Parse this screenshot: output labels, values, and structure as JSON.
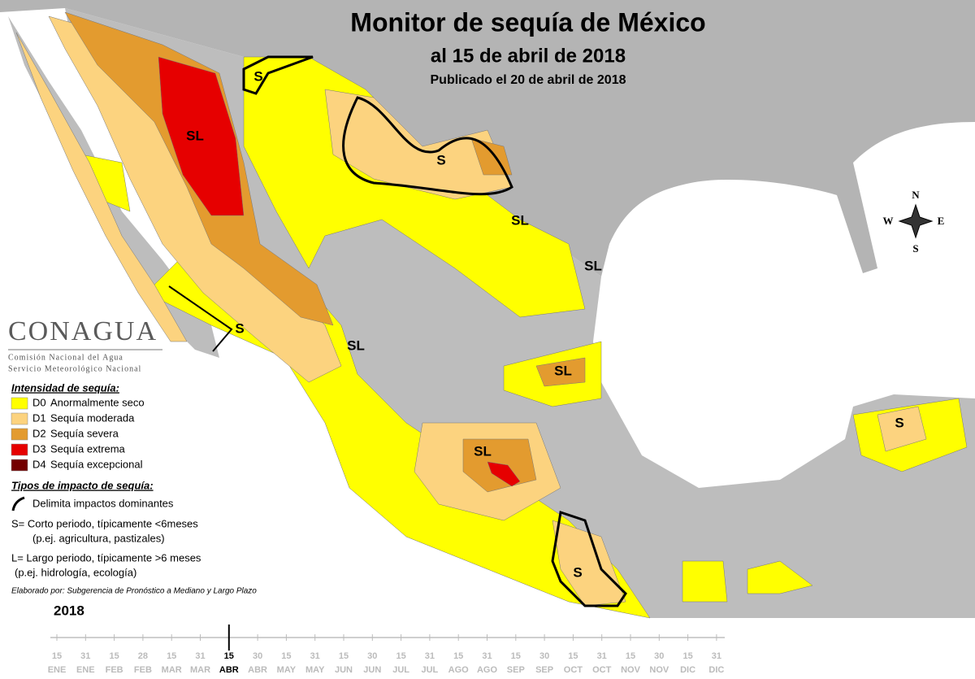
{
  "header": {
    "title": "Monitor de sequía de México",
    "subtitle": "al 15 de abril de 2018",
    "published": "Publicado el 20 de abril de 2018"
  },
  "compass": {
    "n": "N",
    "s": "S",
    "e": "E",
    "w": "W"
  },
  "logo": {
    "name": "CONAGUA",
    "agency": "Comisión Nacional del Agua",
    "service": "Servicio Meteorológico Nacional"
  },
  "legend": {
    "intensity_title": "Intensidad de sequía:",
    "items": [
      {
        "code": "D0",
        "label": "Anormalmente seco",
        "color": "#ffff00"
      },
      {
        "code": "D1",
        "label": "Sequía moderada",
        "color": "#fcd37f"
      },
      {
        "code": "D2",
        "label": "Sequía severa",
        "color": "#e39b2f"
      },
      {
        "code": "D3",
        "label": "Sequía extrema",
        "color": "#e60000"
      },
      {
        "code": "D4",
        "label": "Sequía excepcional",
        "color": "#730000"
      }
    ],
    "impact_title": "Tipos de impacto de sequía:",
    "boundary": "Delimita impactos dominantes",
    "short": "S= Corto periodo, típicamente <6meses",
    "short_examples": "(p.ej. agricultura, pastizales)",
    "long": "L= Largo periodo, típicamente >6 meses",
    "long_examples": "(p.ej. hidrología, ecología)"
  },
  "credit": "Elaborado por: Subgerencia de Pronóstico a Mediano y Largo Plazo",
  "map_labels": [
    "SL",
    "S",
    "S",
    "SL",
    "SL",
    "S",
    "SL",
    "SL",
    "SL",
    "S",
    "S"
  ],
  "timeline": {
    "year": "2018",
    "current": 6,
    "ticks": [
      {
        "day": "15",
        "month": "ENE"
      },
      {
        "day": "31",
        "month": "ENE"
      },
      {
        "day": "15",
        "month": "FEB"
      },
      {
        "day": "28",
        "month": "FEB"
      },
      {
        "day": "15",
        "month": "MAR"
      },
      {
        "day": "31",
        "month": "MAR"
      },
      {
        "day": "15",
        "month": "ABR"
      },
      {
        "day": "30",
        "month": "ABR"
      },
      {
        "day": "15",
        "month": "MAY"
      },
      {
        "day": "31",
        "month": "MAY"
      },
      {
        "day": "15",
        "month": "JUN"
      },
      {
        "day": "30",
        "month": "JUN"
      },
      {
        "day": "15",
        "month": "JUL"
      },
      {
        "day": "31",
        "month": "JUL"
      },
      {
        "day": "15",
        "month": "AGO"
      },
      {
        "day": "31",
        "month": "AGO"
      },
      {
        "day": "15",
        "month": "SEP"
      },
      {
        "day": "30",
        "month": "SEP"
      },
      {
        "day": "15",
        "month": "OCT"
      },
      {
        "day": "31",
        "month": "OCT"
      },
      {
        "day": "15",
        "month": "NOV"
      },
      {
        "day": "30",
        "month": "NOV"
      },
      {
        "day": "15",
        "month": "DIC"
      },
      {
        "day": "31",
        "month": "DIC"
      }
    ]
  }
}
